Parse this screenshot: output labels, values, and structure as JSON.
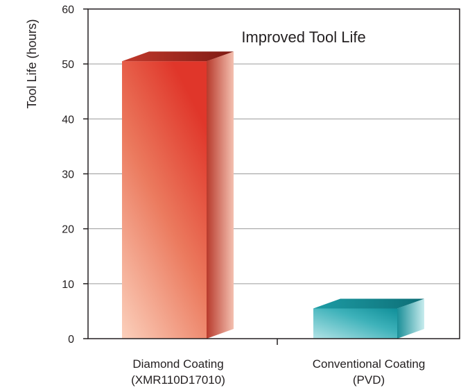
{
  "chart_data": {
    "type": "bar",
    "title": "Improved Tool Life",
    "ylabel": "Tool Life (hours)",
    "xlabel": "",
    "ylim": [
      0,
      60
    ],
    "yticks": [
      0,
      10,
      20,
      30,
      40,
      50,
      60
    ],
    "grid": true,
    "three_d": true,
    "categories": [
      {
        "line1": "Diamond Coating",
        "line2": "(XMR110D17010)"
      },
      {
        "line1": "Conventional Coating",
        "line2": "(PVD)"
      }
    ],
    "values": [
      50.5,
      5.5
    ],
    "colors": [
      "#e8412f",
      "#1fa3ad"
    ]
  }
}
